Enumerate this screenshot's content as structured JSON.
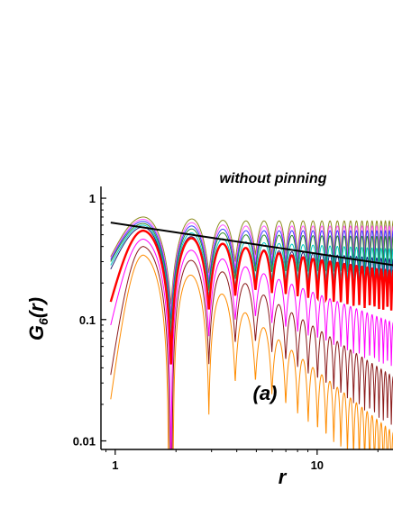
{
  "chart_data": {
    "type": "line",
    "title": "without pinning",
    "annotation": "(a)",
    "xlabel": "r",
    "ylabel": {
      "main": "G",
      "sub": "6",
      "suffix": "(r)"
    },
    "x_scale": "log",
    "y_scale": "log",
    "xlim": [
      0.85,
      24
    ],
    "ylim": [
      0.0085,
      1.25
    ],
    "x_ticks": [
      {
        "value": 1,
        "label": "1"
      },
      {
        "value": 10,
        "label": "10"
      }
    ],
    "y_ticks": [
      {
        "value": 1,
        "label": "1"
      },
      {
        "value": 0.1,
        "label": "0.1"
      },
      {
        "value": 0.01,
        "label": "0.01"
      }
    ],
    "grid": false,
    "legend": "none",
    "fit_line": {
      "x": [
        0.95,
        24
      ],
      "y": [
        0.63,
        0.28
      ],
      "color": "#000000"
    },
    "series": [
      {
        "color": "#8c8c1e",
        "x_start": 0.95,
        "start": 0.33,
        "peak": 0.7,
        "plateau": 0.65,
        "slope": 0.0,
        "highlight": false
      },
      {
        "color": "#ff55ff",
        "x_start": 0.95,
        "start": 0.32,
        "peak": 0.67,
        "plateau": 0.59,
        "slope": 0.0,
        "highlight": false
      },
      {
        "color": "#3c3cff",
        "x_start": 0.95,
        "start": 0.31,
        "peak": 0.645,
        "plateau": 0.54,
        "slope": 0.0,
        "highlight": false
      },
      {
        "color": "#2e8b2e",
        "x_start": 0.95,
        "start": 0.3,
        "peak": 0.62,
        "plateau": 0.5,
        "slope": -0.02,
        "highlight": false
      },
      {
        "color": "#00c8c8",
        "x_start": 0.95,
        "start": 0.28,
        "peak": 0.6,
        "plateau": 0.44,
        "slope": -0.08,
        "highlight": false
      },
      {
        "color": "#222277",
        "x_start": 0.95,
        "start": 0.26,
        "peak": 0.58,
        "plateau": 0.39,
        "slope": -0.12,
        "highlight": false
      },
      {
        "color": "#ff0000",
        "x_start": 0.95,
        "start": 0.14,
        "peak": 0.54,
        "plateau": 0.4,
        "slope": -0.27,
        "highlight": true
      },
      {
        "color": "#ff00ff",
        "x_start": 0.95,
        "start": 0.09,
        "peak": 0.46,
        "plateau": 0.29,
        "slope": -0.63,
        "highlight": false
      },
      {
        "color": "#8b1a1a",
        "x_start": 0.95,
        "start": 0.035,
        "peak": 0.4,
        "plateau": 0.22,
        "slope": -1.05,
        "highlight": false
      },
      {
        "color": "#ff8c00",
        "x_start": 0.95,
        "start": 0.022,
        "peak": 0.34,
        "plateau": 0.13,
        "slope": -1.35,
        "highlight": false
      }
    ]
  }
}
